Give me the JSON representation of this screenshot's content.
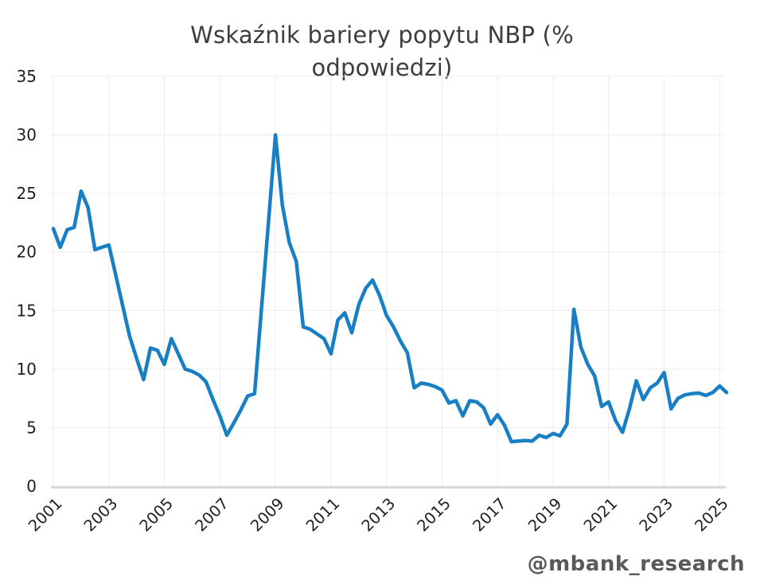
{
  "title": {
    "line1": "Wskaźnik bariery popytu NBP (%",
    "line2": "odpowiedzi)"
  },
  "watermark": "@mbank_research",
  "chart_data": {
    "type": "line",
    "title": "Wskaźnik bariery popytu NBP (% odpowiedzi)",
    "frequency": "quarterly",
    "x_start": "2001Q1",
    "x_end": "2025Q2",
    "values": [
      22.0,
      20.4,
      21.9,
      22.1,
      25.2,
      23.8,
      20.2,
      20.4,
      20.6,
      18.0,
      15.4,
      12.8,
      10.9,
      9.1,
      11.8,
      11.6,
      10.4,
      12.6,
      11.3,
      10.0,
      9.8,
      9.5,
      8.9,
      7.4,
      6.0,
      4.35,
      5.4,
      6.5,
      7.7,
      7.9,
      15.2,
      22.6,
      30.0,
      24.0,
      20.8,
      19.2,
      13.6,
      13.4,
      13.0,
      12.6,
      11.3,
      14.2,
      14.8,
      13.1,
      15.5,
      16.9,
      17.6,
      16.3,
      14.6,
      13.6,
      12.4,
      11.4,
      8.4,
      8.8,
      8.7,
      8.5,
      8.2,
      7.1,
      7.3,
      6.0,
      7.3,
      7.2,
      6.7,
      5.3,
      6.1,
      5.2,
      3.8,
      3.85,
      3.9,
      3.85,
      4.35,
      4.15,
      4.5,
      4.3,
      5.3,
      15.1,
      11.9,
      10.4,
      9.4,
      6.8,
      7.2,
      5.6,
      4.6,
      6.6,
      9.0,
      7.4,
      8.4,
      8.8,
      9.7,
      6.6,
      7.5,
      7.8,
      7.9,
      7.95,
      7.75,
      8.0,
      8.55,
      8.0
    ],
    "x_tick_labels": [
      "2001",
      "2003",
      "2005",
      "2007",
      "2009",
      "2011",
      "2013",
      "2015",
      "2017",
      "2019",
      "2021",
      "2023",
      "2025"
    ],
    "x_first_tick_year": 2001,
    "quarters_per_year": 4,
    "y_ticks": [
      0,
      5,
      10,
      15,
      20,
      25,
      30,
      35
    ],
    "ylim": [
      0,
      35
    ],
    "grid": true,
    "legend": "none",
    "line_color": "#187fc4",
    "grid_color": "#ececec",
    "axis_line_color": "#d9d9d9",
    "tick_label_color": "#1f1f1f",
    "title_color": "#3d3d3d",
    "watermark_color": "#595959"
  }
}
